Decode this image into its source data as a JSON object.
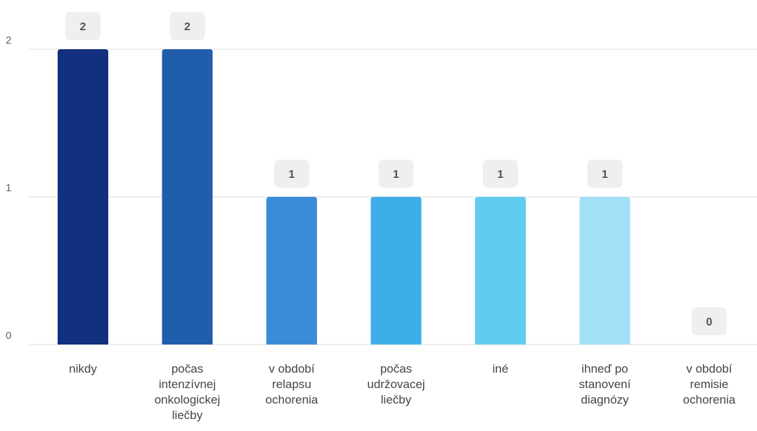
{
  "chart_data": {
    "type": "bar",
    "title": "",
    "xlabel": "",
    "ylabel": "",
    "ylim": [
      0,
      2
    ],
    "yticks": [
      "0",
      "1",
      "2"
    ],
    "grid": true,
    "categories": [
      [
        "nikdy"
      ],
      [
        "počas",
        "intenzívnej",
        "onkologickej",
        "liečby"
      ],
      [
        "v období",
        "relapsu",
        "ochorenia"
      ],
      [
        "počas",
        "udržovacej",
        "liečby"
      ],
      [
        "iné"
      ],
      [
        "ihneď po",
        "stanovení",
        "diagnózy"
      ],
      [
        "v období",
        "remisie",
        "ochorenia"
      ]
    ],
    "values": [
      2,
      2,
      1,
      1,
      1,
      1,
      0
    ],
    "value_labels": [
      "2",
      "2",
      "1",
      "1",
      "1",
      "1",
      "0"
    ],
    "colors": [
      "#13307f",
      "#205dad",
      "#3a8bd8",
      "#3eaee8",
      "#60cdf0",
      "#a2e0f7",
      "#d7f2fb"
    ],
    "label_box_color": "#efefef",
    "grid_color": "#dddddd"
  }
}
